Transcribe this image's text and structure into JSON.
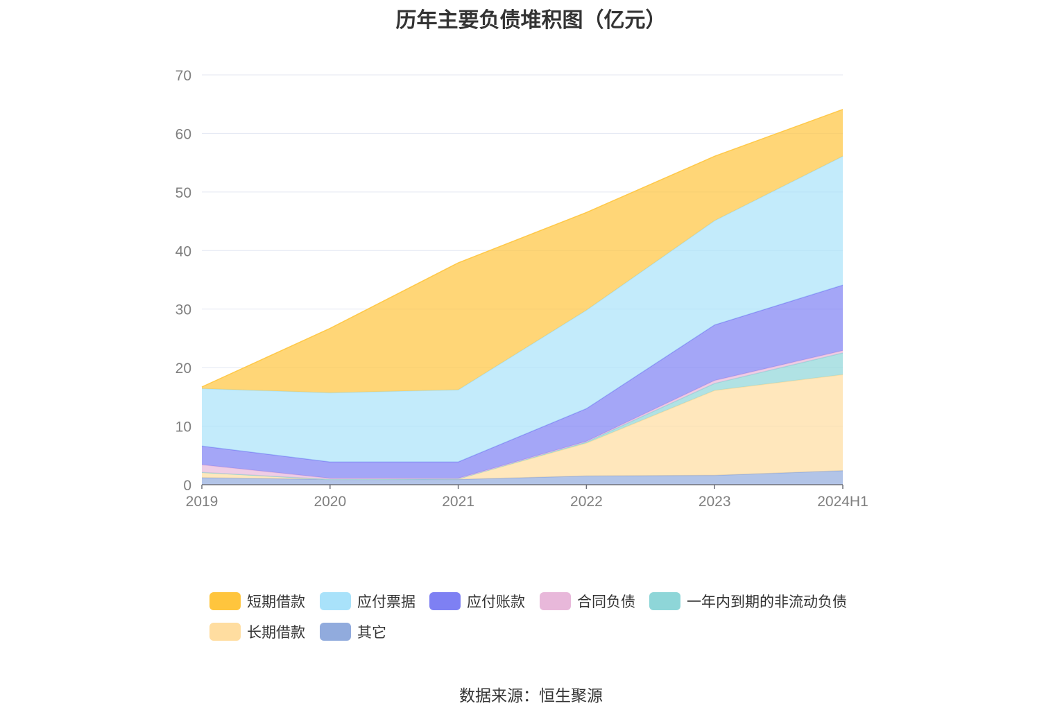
{
  "chart_data": {
    "type": "area",
    "stacked": true,
    "title": "历年主要负债堆积图（亿元）",
    "categories": [
      "2019",
      "2020",
      "2021",
      "2022",
      "2023",
      "2024H1"
    ],
    "ylim": [
      0,
      70
    ],
    "yticks": [
      "0",
      "10",
      "20",
      "30",
      "40",
      "50",
      "60",
      "70"
    ],
    "grid": true,
    "legend_position": "bottom",
    "series": [
      {
        "name": "其它",
        "color": "#91ABDD",
        "values": [
          1.2,
          0.9,
          0.9,
          1.5,
          1.6,
          2.4
        ]
      },
      {
        "name": "长期借款",
        "color": "#FFDDA0",
        "values": [
          0.9,
          0.0,
          0.1,
          5.6,
          14.5,
          16.4
        ]
      },
      {
        "name": "一年内到期的非流动负债",
        "color": "#8ED6D8",
        "values": [
          0.0,
          0.0,
          0.0,
          0.2,
          1.2,
          3.7
        ]
      },
      {
        "name": "合同负债",
        "color": "#E8B8DA",
        "values": [
          1.3,
          0.2,
          0.1,
          0.1,
          0.5,
          0.4
        ]
      },
      {
        "name": "应付账款",
        "color": "#7E80F3",
        "values": [
          3.2,
          2.8,
          2.8,
          5.6,
          9.5,
          11.2
        ]
      },
      {
        "name": "应付票据",
        "color": "#A9E2FA",
        "values": [
          9.8,
          11.8,
          12.3,
          16.8,
          17.8,
          22.0
        ]
      },
      {
        "name": "短期借款",
        "color": "#FFC53D",
        "values": [
          0.3,
          11.0,
          21.7,
          16.7,
          11.0,
          8.0
        ]
      }
    ]
  },
  "legend": {
    "items": [
      {
        "label": "短期借款",
        "color": "#FFC53D"
      },
      {
        "label": "应付票据",
        "color": "#A9E2FA"
      },
      {
        "label": "应付账款",
        "color": "#7E80F3"
      },
      {
        "label": "合同负债",
        "color": "#E8B8DA"
      },
      {
        "label": "一年内到期的非流动负债",
        "color": "#8ED6D8"
      },
      {
        "label": "长期借款",
        "color": "#FFDDA0"
      },
      {
        "label": "其它",
        "color": "#91ABDD"
      }
    ]
  },
  "footer": {
    "source": "数据来源：恒生聚源"
  }
}
